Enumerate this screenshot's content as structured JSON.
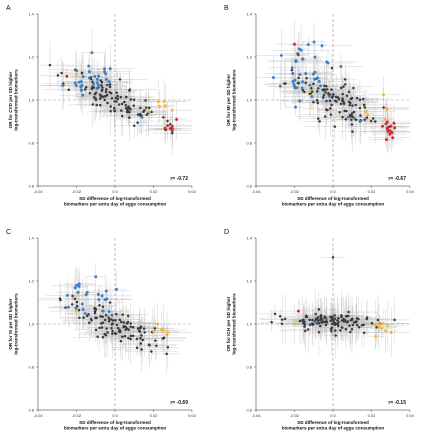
{
  "colors": {
    "background_point": "#3a3a3a",
    "highlight_blue": "#3a7fc6",
    "highlight_red": "#d9252a",
    "highlight_yellow": "#f2b630",
    "error_bar": "#bdbdbd",
    "reference_line": "#9a9a9a"
  },
  "chart_data": [
    {
      "type": "scatter",
      "panel_label": "A",
      "title": "",
      "xlabel": "SD difference of log-transformed\nbiomarkers per extra day of eggs consumption",
      "ylabel": "OR for CVD per SD higher\nlog-transformed biomarkers",
      "xlim": [
        -0.04,
        0.04
      ],
      "ylim": [
        0.6,
        1.4
      ],
      "xticks": [
        "-0.04",
        "-0.02",
        "0.0",
        "0.02",
        "0.04"
      ],
      "yticks": [
        "0.6",
        "0.8",
        "1.0",
        "1.2",
        "1.4"
      ],
      "reference_lines": {
        "x": 0.0,
        "y": 1.0
      },
      "correlation_label": "r= -0.72",
      "r": -0.72,
      "seed": 11,
      "groups": [
        {
          "color": "highlight_blue",
          "n": 28,
          "x_mean": -0.012,
          "x_sd": 0.006,
          "y_mean": 1.1,
          "y_sd": 0.045
        },
        {
          "color": "highlight_red",
          "n": 8,
          "x_mean": 0.028,
          "x_sd": 0.002,
          "y_mean": 0.88,
          "y_sd": 0.015
        },
        {
          "color": "highlight_yellow",
          "n": 6,
          "x_mean": 0.024,
          "x_sd": 0.004,
          "y_mean": 0.97,
          "y_sd": 0.03
        },
        {
          "color": "background_point",
          "n": 110,
          "x_mean": 0.0,
          "x_sd": 0.012,
          "y_mean": 1.0,
          "y_sd": 0.07
        }
      ],
      "points_highlight": [
        {
          "x": -0.025,
          "y": 1.11,
          "color": "highlight_red"
        },
        {
          "x": -0.02,
          "y": 1.12,
          "color": "highlight_yellow"
        },
        {
          "x": -0.012,
          "y": 1.22,
          "color": "highlight_blue"
        },
        {
          "x": 0.014,
          "y": 0.92,
          "color": "highlight_blue"
        }
      ]
    },
    {
      "type": "scatter",
      "panel_label": "B",
      "title": "",
      "xlabel": "SD difference of log-transformed\nbiomarkers per extra day of eggs consumption",
      "ylabel": "OR for MI per SD higher\nlog-transformed biomarkers",
      "xlim": [
        -0.04,
        0.04
      ],
      "ylim": [
        0.6,
        1.4
      ],
      "xticks": [
        "-0.04",
        "-0.02",
        "0.0",
        "0.02",
        "0.04"
      ],
      "yticks": [
        "0.6",
        "0.8",
        "1.0",
        "1.2",
        "1.4"
      ],
      "reference_lines": {
        "x": 0.0,
        "y": 1.0
      },
      "correlation_label": "r= -0.67",
      "r": -0.67,
      "seed": 23,
      "groups": [
        {
          "color": "highlight_blue",
          "n": 40,
          "x_mean": -0.012,
          "x_sd": 0.007,
          "y_mean": 1.12,
          "y_sd": 0.06
        },
        {
          "color": "highlight_red",
          "n": 14,
          "x_mean": 0.028,
          "x_sd": 0.002,
          "y_mean": 0.86,
          "y_sd": 0.025
        },
        {
          "color": "highlight_yellow",
          "n": 6,
          "x_mean": 0.022,
          "x_sd": 0.004,
          "y_mean": 0.95,
          "y_sd": 0.04
        },
        {
          "color": "background_point",
          "n": 110,
          "x_mean": 0.0,
          "x_sd": 0.012,
          "y_mean": 1.0,
          "y_sd": 0.08
        }
      ],
      "points_highlight": [
        {
          "x": -0.02,
          "y": 1.26,
          "color": "highlight_red"
        },
        {
          "x": -0.018,
          "y": 1.21,
          "color": "highlight_red"
        },
        {
          "x": 0.008,
          "y": 0.92,
          "color": "highlight_blue"
        },
        {
          "x": 0.014,
          "y": 0.9,
          "color": "highlight_blue"
        },
        {
          "x": -0.012,
          "y": 1.04,
          "color": "highlight_yellow"
        }
      ]
    },
    {
      "type": "scatter",
      "panel_label": "C",
      "title": "",
      "xlabel": "SD difference of log-transformed\nbiomarkers per extra day of eggs consumption",
      "ylabel": "OR for IS per SD higher\nlog-transformed biomarkers",
      "xlim": [
        -0.04,
        0.04
      ],
      "ylim": [
        0.6,
        1.4
      ],
      "xticks": [
        "-0.04",
        "-0.02",
        "0.0",
        "0.02",
        "0.04"
      ],
      "yticks": [
        "0.6",
        "0.8",
        "1.0",
        "1.2",
        "1.4"
      ],
      "reference_lines": {
        "x": 0.0,
        "y": 1.0
      },
      "correlation_label": "r= -0.69",
      "r": -0.69,
      "seed": 37,
      "groups": [
        {
          "color": "highlight_blue",
          "n": 24,
          "x_mean": -0.012,
          "x_sd": 0.006,
          "y_mean": 1.11,
          "y_sd": 0.04
        },
        {
          "color": "highlight_yellow",
          "n": 6,
          "x_mean": 0.024,
          "x_sd": 0.003,
          "y_mean": 0.96,
          "y_sd": 0.03
        },
        {
          "color": "background_point",
          "n": 110,
          "x_mean": 0.0,
          "x_sd": 0.012,
          "y_mean": 1.0,
          "y_sd": 0.065
        }
      ],
      "points_highlight": [
        {
          "x": -0.022,
          "y": 1.13,
          "color": "highlight_red"
        },
        {
          "x": -0.02,
          "y": 1.06,
          "color": "highlight_yellow"
        },
        {
          "x": -0.01,
          "y": 1.22,
          "color": "highlight_blue"
        }
      ]
    },
    {
      "type": "scatter",
      "panel_label": "D",
      "title": "",
      "xlabel": "SD difference of log-transformed\nbiomarkers per extra day of eggs consumption",
      "ylabel": "OR for ICH per SD higher\nlog-transformed biomarkers",
      "xlim": [
        -0.04,
        0.04
      ],
      "ylim": [
        0.6,
        1.4
      ],
      "xticks": [
        "-0.04",
        "-0.02",
        "0.0",
        "0.02",
        "0.04"
      ],
      "yticks": [
        "0.6",
        "0.8",
        "1.0",
        "1.2",
        "1.4"
      ],
      "reference_lines": {
        "x": 0.0,
        "y": 1.0
      },
      "correlation_label": "r= -0.15",
      "r": -0.15,
      "seed": 53,
      "groups": [
        {
          "color": "highlight_yellow",
          "n": 10,
          "x_mean": 0.026,
          "x_sd": 0.003,
          "y_mean": 0.99,
          "y_sd": 0.02
        },
        {
          "color": "highlight_blue",
          "n": 2,
          "x_mean": -0.01,
          "x_sd": 0.004,
          "y_mean": 1.02,
          "y_sd": 0.02
        },
        {
          "color": "background_point",
          "n": 130,
          "x_mean": 0.0,
          "x_sd": 0.012,
          "y_mean": 1.01,
          "y_sd": 0.028
        }
      ],
      "points_highlight": [
        {
          "x": 0.0,
          "y": 1.31,
          "color": "background_point"
        },
        {
          "x": -0.018,
          "y": 1.06,
          "color": "highlight_red"
        },
        {
          "x": -0.02,
          "y": 1.0,
          "color": "highlight_yellow"
        }
      ]
    }
  ]
}
